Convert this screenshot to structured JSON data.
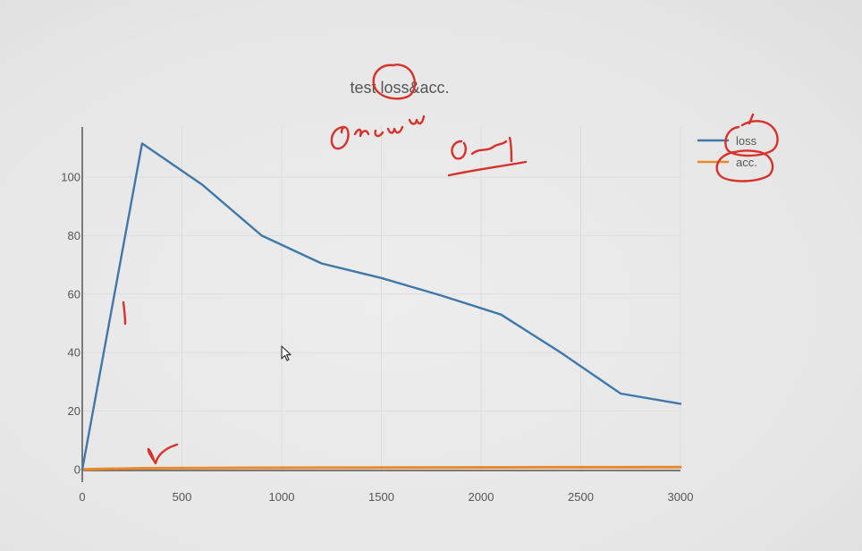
{
  "chart_data": {
    "type": "line",
    "title": "test loss&acc.",
    "xlim": [
      0,
      3000
    ],
    "ylim": [
      0,
      115
    ],
    "x_ticks": [
      0,
      500,
      1000,
      1500,
      2000,
      2500,
      3000
    ],
    "y_ticks": [
      0,
      20,
      40,
      60,
      80,
      100
    ],
    "grid": true,
    "legend_position": "top-right",
    "series": [
      {
        "name": "loss",
        "color": "#3f78aa",
        "x": [
          0,
          300,
          600,
          900,
          1200,
          1500,
          1800,
          2100,
          2400,
          2700,
          3000
        ],
        "y": [
          0,
          111.5,
          97.5,
          80,
          70.5,
          65.5,
          59.5,
          53,
          40,
          26,
          22.5
        ]
      },
      {
        "name": "acc.",
        "color": "#e8892c",
        "x": [
          0,
          300,
          600,
          900,
          1200,
          1500,
          1800,
          2100,
          2400,
          2700,
          3000
        ],
        "y": [
          0.1,
          0.45,
          0.55,
          0.6,
          0.65,
          0.7,
          0.72,
          0.75,
          0.78,
          0.8,
          0.82
        ]
      }
    ]
  },
  "annotations": {
    "note_top": "0~w",
    "note_range": "0~1",
    "note_loss": "1",
    "note_acc": "r"
  }
}
